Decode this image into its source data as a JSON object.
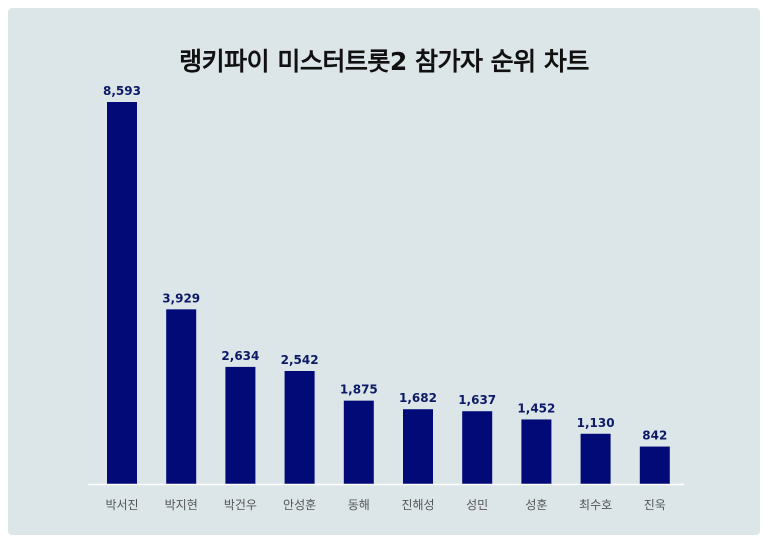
{
  "chart_data": {
    "type": "bar",
    "title": "랭키파이 미스터트롯2 참가자 순위 차트",
    "categories": [
      "박서진",
      "박지현",
      "박건우",
      "안성훈",
      "동해",
      "진해성",
      "성민",
      "성훈",
      "최수호",
      "진욱"
    ],
    "values": [
      8593,
      3929,
      2634,
      2542,
      1875,
      1682,
      1637,
      1452,
      1130,
      842
    ],
    "value_labels": [
      "8,593",
      "3,929",
      "2,634",
      "2,542",
      "1,875",
      "1,682",
      "1,637",
      "1,452",
      "1,130",
      "842"
    ],
    "xlabel": "",
    "ylabel": "",
    "ylim": [
      0,
      8593
    ],
    "grid": false,
    "legend": "none",
    "colors": {
      "bar": "#020a78",
      "value_label": "#0d1a66",
      "category_label": "#555555",
      "axis": "#ffffff",
      "background": "#dce6e9"
    }
  }
}
